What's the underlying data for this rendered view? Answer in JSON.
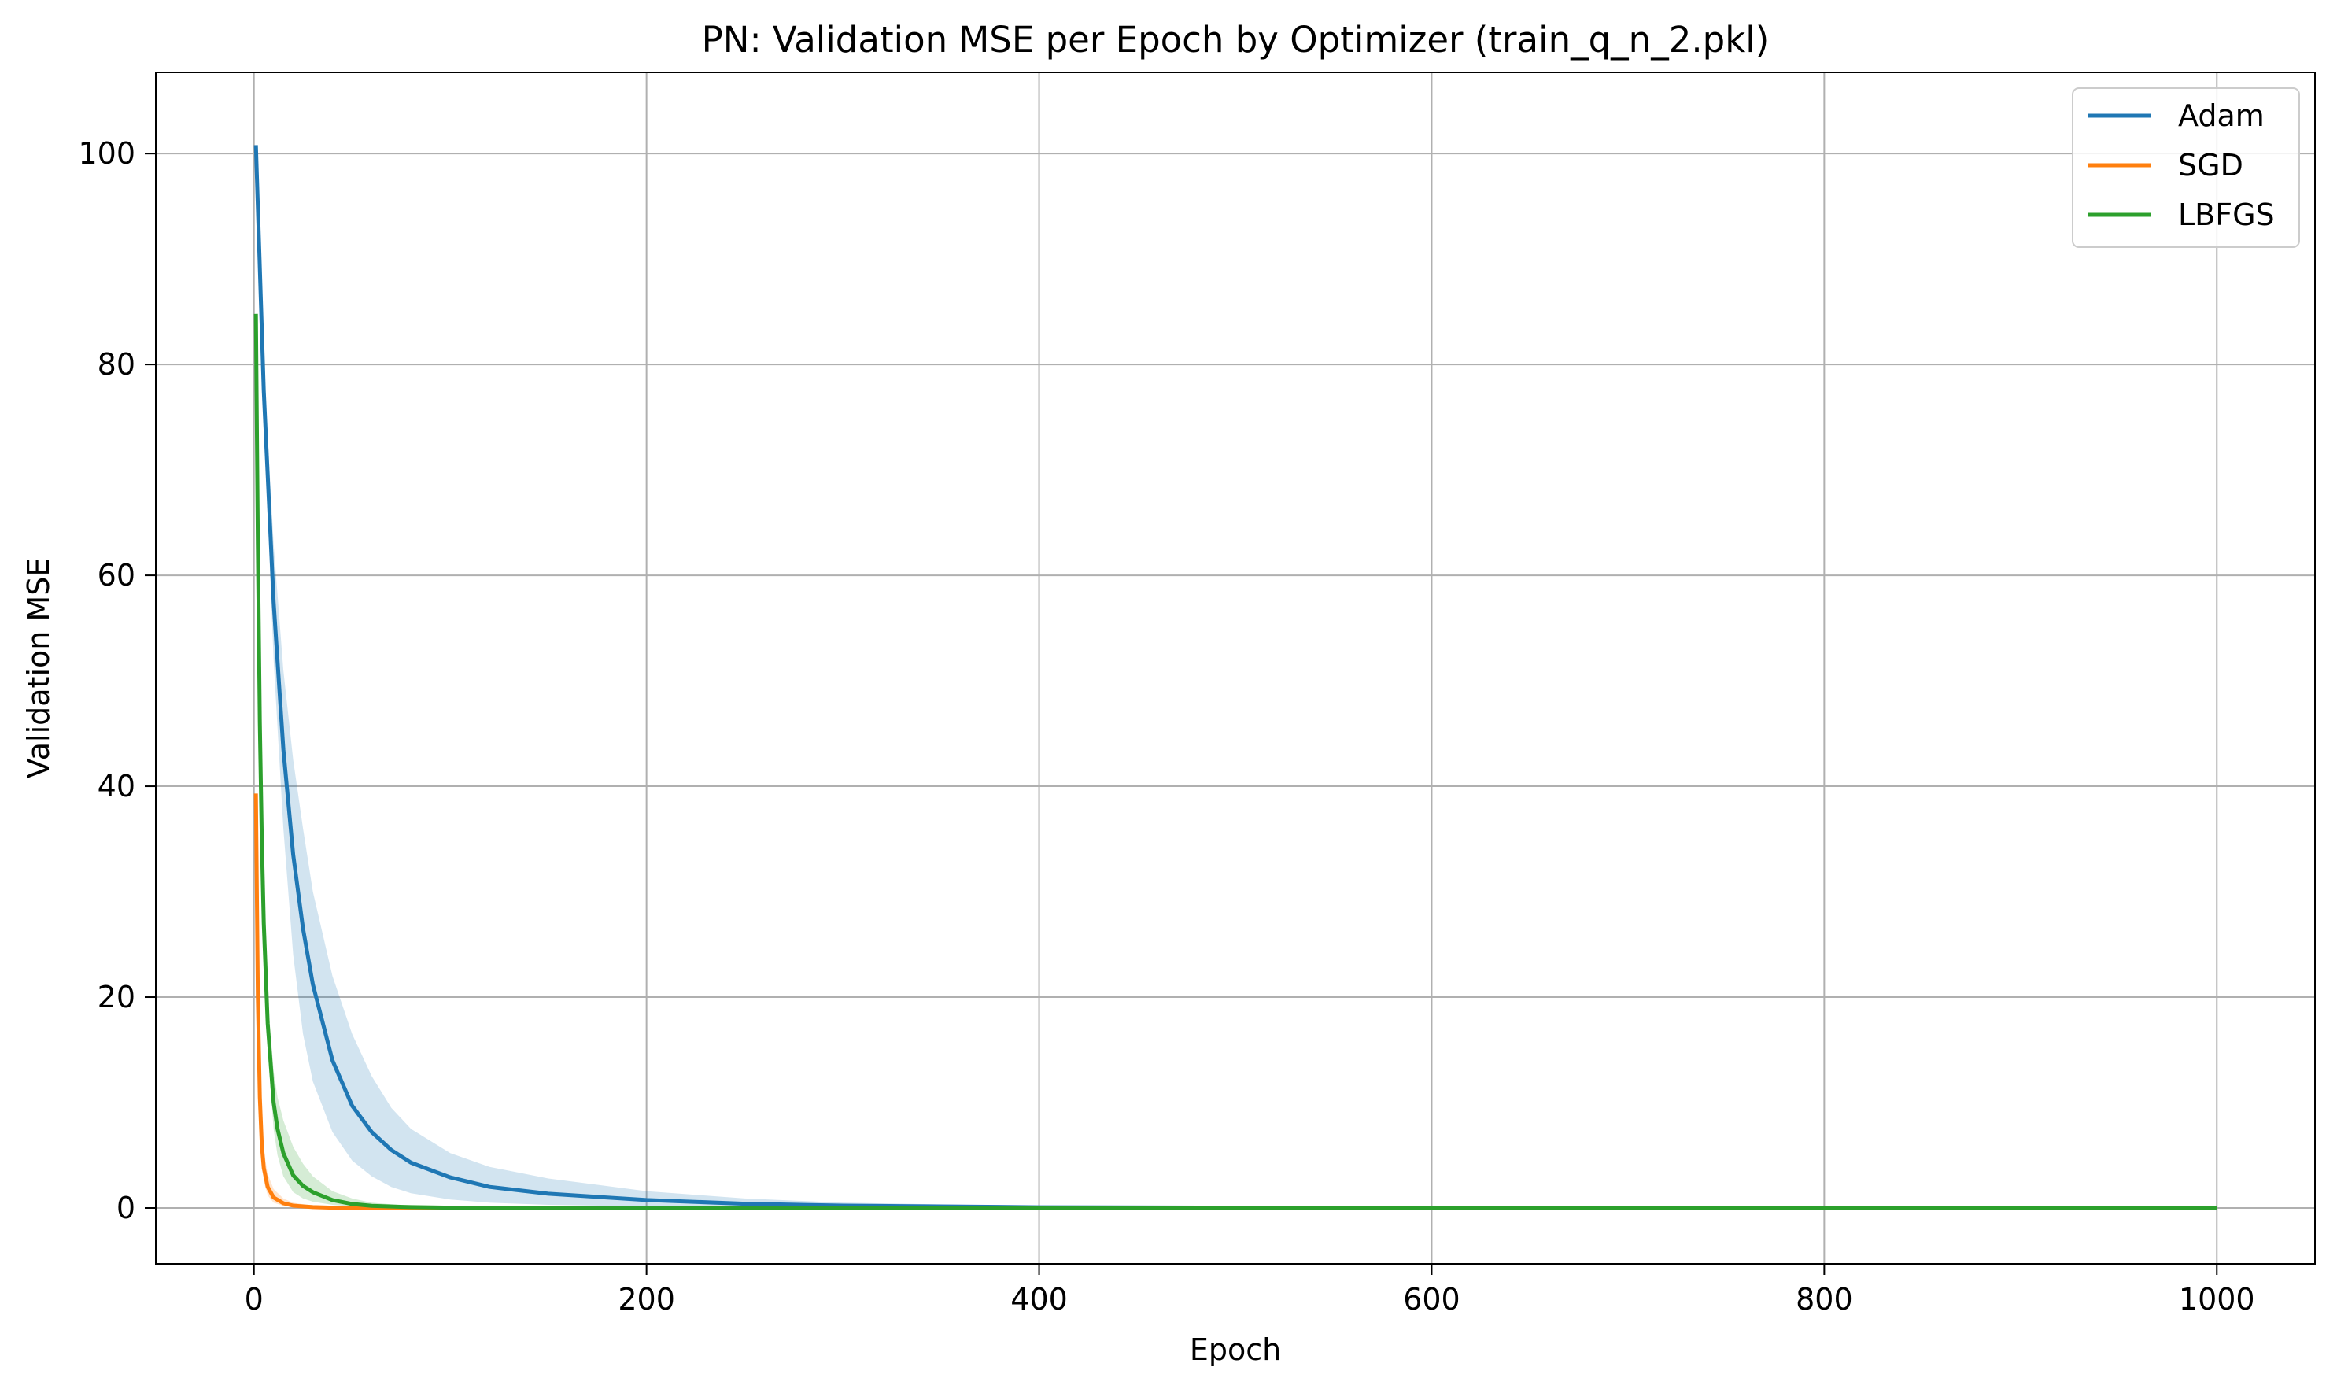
{
  "chart_data": {
    "type": "line",
    "title": "PN: Validation MSE per Epoch by Optimizer (train_q_n_2.pkl)",
    "xlabel": "Epoch",
    "ylabel": "Validation MSE",
    "xlim": [
      -50,
      1050
    ],
    "ylim": [
      -5.3,
      107.7
    ],
    "xticks": [
      0,
      200,
      400,
      600,
      800,
      1000
    ],
    "yticks": [
      0,
      20,
      40,
      60,
      80,
      100
    ],
    "grid": true,
    "legend_position": "top-right",
    "series": [
      {
        "name": "Adam",
        "color": "#1f77b4",
        "x": [
          1,
          5,
          10,
          15,
          20,
          25,
          30,
          40,
          50,
          60,
          70,
          80,
          100,
          120,
          150,
          200,
          250,
          300,
          400,
          500,
          600,
          700,
          800,
          900,
          1000
        ],
        "y": [
          100.8,
          77.5,
          57.5,
          43.5,
          33.5,
          26.5,
          21.2,
          14.0,
          9.7,
          7.2,
          5.5,
          4.3,
          2.9,
          2.0,
          1.35,
          0.75,
          0.4,
          0.22,
          0.07,
          0.03,
          0.01,
          0.005,
          0.002,
          0.001,
          0.0
        ],
        "band_low": [
          100.8,
          75.0,
          52.0,
          36.0,
          24.0,
          16.5,
          12.0,
          7.2,
          4.5,
          3.0,
          2.0,
          1.4,
          0.8,
          0.5,
          0.3,
          0.15,
          0.08,
          0.04,
          0.015,
          0.005,
          0.002,
          0.001,
          0.0,
          0.0,
          0.0
        ],
        "band_high": [
          100.8,
          80.0,
          63.0,
          51.0,
          42.5,
          36.0,
          30.0,
          22.0,
          16.5,
          12.5,
          9.5,
          7.5,
          5.2,
          3.9,
          2.8,
          1.6,
          0.9,
          0.5,
          0.18,
          0.07,
          0.03,
          0.012,
          0.005,
          0.002,
          0.001
        ]
      },
      {
        "name": "SGD",
        "color": "#ff7f0e",
        "x": [
          1,
          2,
          3,
          4,
          5,
          7,
          10,
          15,
          20,
          30,
          40,
          60,
          100,
          200,
          400,
          600,
          800,
          1000
        ],
        "y": [
          39.3,
          20.0,
          10.5,
          6.0,
          3.8,
          2.0,
          1.0,
          0.45,
          0.22,
          0.08,
          0.03,
          0.01,
          0.0,
          0.0,
          0.0,
          0.0,
          0.0,
          0.0
        ],
        "band_low": [
          39.3,
          18.0,
          8.5,
          4.5,
          2.5,
          1.2,
          0.5,
          0.2,
          0.1,
          0.03,
          0.01,
          0.0,
          0.0,
          0.0,
          0.0,
          0.0,
          0.0,
          0.0
        ],
        "band_high": [
          39.3,
          22.0,
          12.5,
          8.0,
          5.5,
          3.2,
          1.8,
          0.9,
          0.5,
          0.2,
          0.08,
          0.03,
          0.01,
          0.0,
          0.0,
          0.0,
          0.0,
          0.0
        ]
      },
      {
        "name": "LBFGS",
        "color": "#2ca02c",
        "x": [
          1,
          2,
          3,
          4,
          5,
          7,
          10,
          12,
          15,
          20,
          25,
          30,
          40,
          50,
          60,
          80,
          100,
          150,
          200,
          400,
          600,
          800,
          1000
        ],
        "y": [
          84.8,
          63.0,
          46.0,
          35.0,
          27.0,
          17.5,
          10.0,
          7.5,
          5.2,
          3.1,
          2.1,
          1.5,
          0.75,
          0.38,
          0.2,
          0.08,
          0.03,
          0.01,
          0.0,
          0.0,
          0.0,
          0.0,
          0.0
        ],
        "band_low": [
          84.8,
          60.0,
          43.0,
          32.0,
          24.0,
          15.0,
          7.5,
          5.0,
          3.0,
          1.5,
          0.9,
          0.6,
          0.3,
          0.15,
          0.08,
          0.03,
          0.01,
          0.0,
          0.0,
          0.0,
          0.0,
          0.0,
          0.0
        ],
        "band_high": [
          84.8,
          66.0,
          49.0,
          38.0,
          30.0,
          20.0,
          13.0,
          10.5,
          8.3,
          5.8,
          4.2,
          3.0,
          1.6,
          0.9,
          0.5,
          0.2,
          0.08,
          0.02,
          0.01,
          0.0,
          0.0,
          0.0,
          0.0
        ]
      }
    ]
  }
}
